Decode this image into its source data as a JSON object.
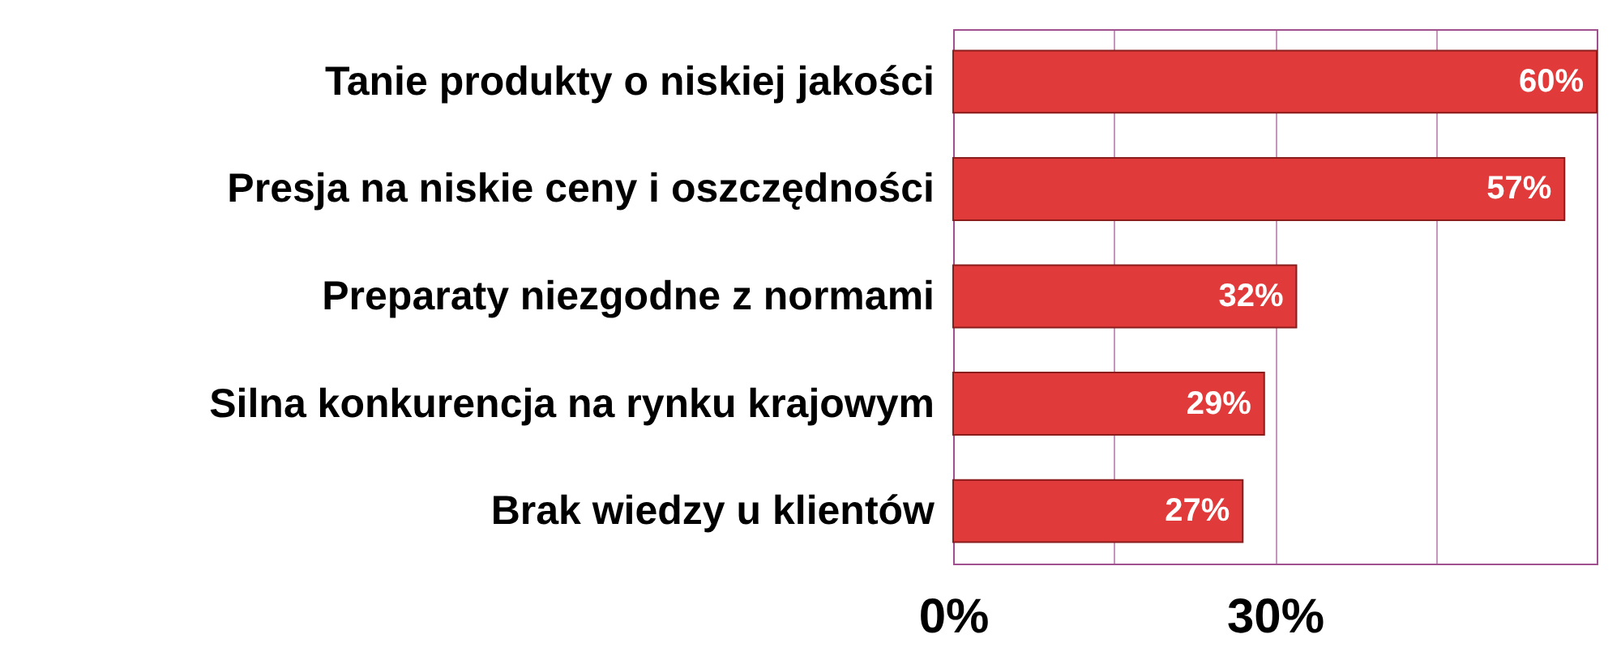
{
  "chart_data": {
    "type": "bar",
    "orientation": "horizontal",
    "categories": [
      "Tanie produkty o niskiej jakości",
      "Presja na niskie ceny i oszczędności",
      "Preparaty niezgodne z normami",
      "Silna konkurencja na rynku krajowym",
      "Brak wiedzy u klientów"
    ],
    "values": [
      60,
      57,
      32,
      29,
      27
    ],
    "value_labels": [
      "60%",
      "57%",
      "32%",
      "29%",
      "27%"
    ],
    "color": "#e03a3a",
    "xlim": [
      0,
      60
    ],
    "xticks": [
      {
        "value": 0,
        "label": "0%"
      },
      {
        "value": 15,
        "label": null
      },
      {
        "value": 30,
        "label": "30%"
      },
      {
        "value": 45,
        "label": null
      },
      {
        "value": 60,
        "label": null
      }
    ],
    "grid": "x"
  }
}
